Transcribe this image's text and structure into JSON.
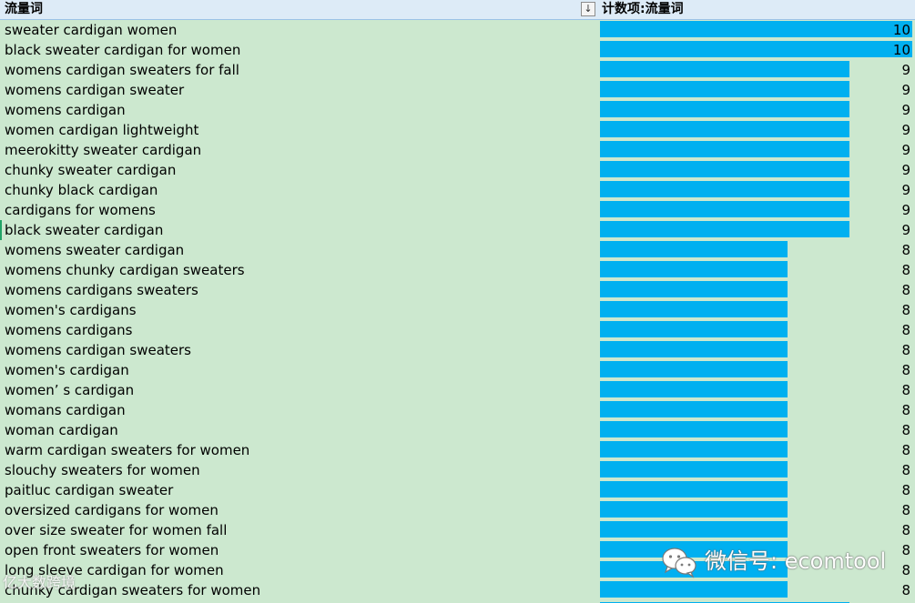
{
  "header": {
    "keyword_column": "流量词",
    "count_column": "计数项:流量词",
    "sort_icon": "sort-descending-icon"
  },
  "colors": {
    "cell_background": "#cce8cf",
    "header_background": "#ddebf7",
    "databar": "#00b0f0"
  },
  "rows": [
    {
      "keyword": "sweater cardigan women",
      "count": 10
    },
    {
      "keyword": "black sweater cardigan for women",
      "count": 10
    },
    {
      "keyword": "womens cardigan sweaters for fall",
      "count": 9
    },
    {
      "keyword": "womens cardigan sweater",
      "count": 9
    },
    {
      "keyword": "womens cardigan",
      "count": 9
    },
    {
      "keyword": "women cardigan lightweight",
      "count": 9
    },
    {
      "keyword": "meerokitty sweater cardigan",
      "count": 9
    },
    {
      "keyword": "chunky sweater cardigan",
      "count": 9
    },
    {
      "keyword": "chunky black cardigan",
      "count": 9
    },
    {
      "keyword": "cardigans for womens",
      "count": 9
    },
    {
      "keyword": "black sweater cardigan",
      "count": 9
    },
    {
      "keyword": "womens sweater cardigan",
      "count": 8
    },
    {
      "keyword": "womens chunky cardigan sweaters",
      "count": 8
    },
    {
      "keyword": "womens cardigans sweaters",
      "count": 8
    },
    {
      "keyword": "women's cardigans",
      "count": 8
    },
    {
      "keyword": "womens cardigans",
      "count": 8
    },
    {
      "keyword": "womens cardigan sweaters",
      "count": 8
    },
    {
      "keyword": "women's cardigan",
      "count": 8
    },
    {
      "keyword": "women’ s cardigan",
      "count": 8
    },
    {
      "keyword": "womans cardigan",
      "count": 8
    },
    {
      "keyword": "woman cardigan",
      "count": 8
    },
    {
      "keyword": "warm cardigan sweaters for women",
      "count": 8
    },
    {
      "keyword": "slouchy sweaters for women",
      "count": 8
    },
    {
      "keyword": "paitluc cardigan sweater",
      "count": 8
    },
    {
      "keyword": "oversized cardigans for women",
      "count": 8
    },
    {
      "keyword": "over size sweater for women fall",
      "count": 8
    },
    {
      "keyword": "open front sweaters for women",
      "count": 8
    },
    {
      "keyword": "long sleeve cardigan for women",
      "count": 8
    },
    {
      "keyword": "chunky cardigan sweaters for women",
      "count": 8
    },
    {
      "keyword": "",
      "count": ""
    }
  ],
  "watermark": {
    "text": "微信号: ecomtool",
    "small_text": "亿大数跨境",
    "icon": "wechat-icon"
  }
}
